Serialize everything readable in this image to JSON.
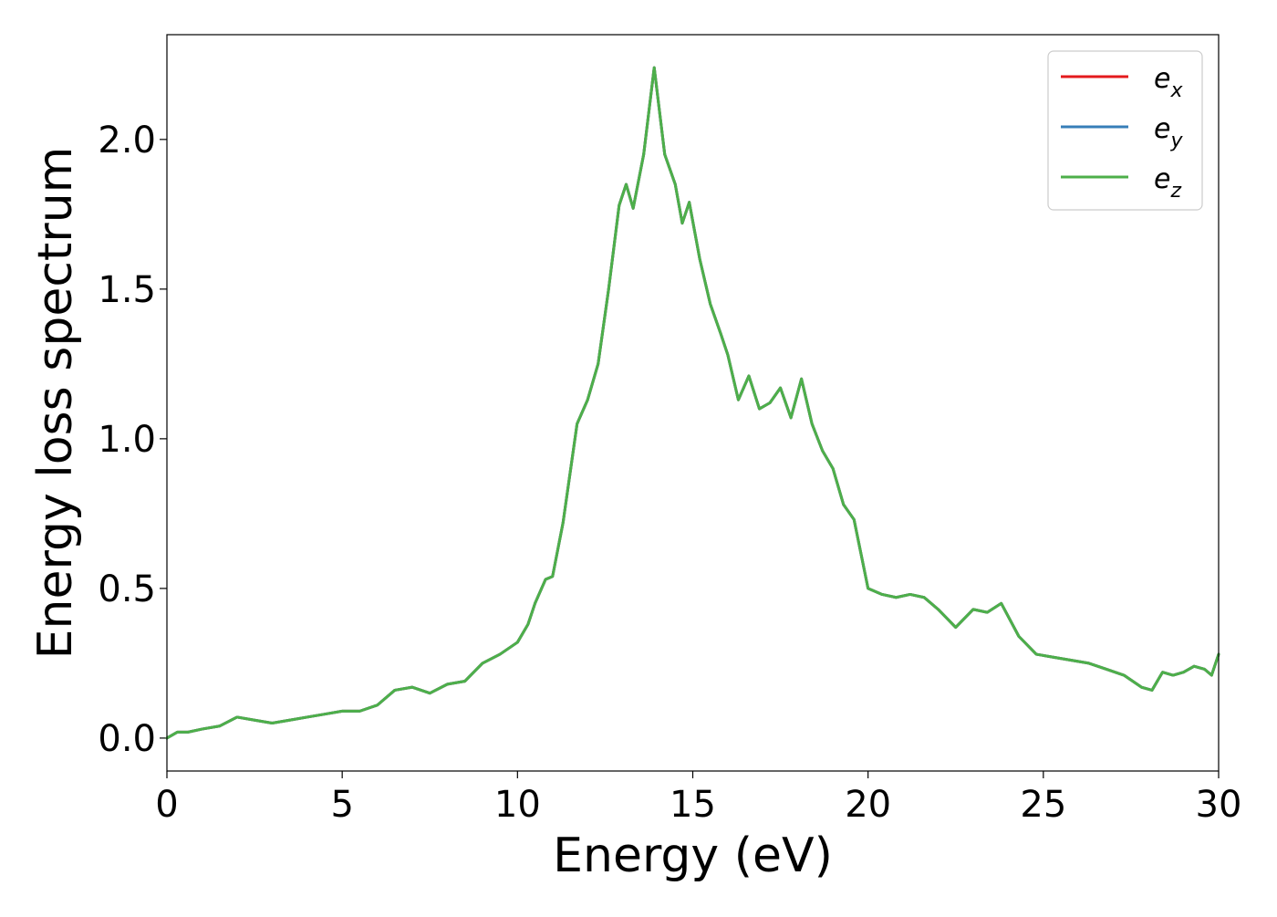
{
  "chart_data": {
    "type": "line",
    "title": "",
    "xlabel": "Energy (eV)",
    "ylabel": "Energy loss spectrum",
    "xlim": [
      0,
      30
    ],
    "ylim": [
      -0.11,
      2.35
    ],
    "xticks": [
      0,
      5,
      10,
      15,
      20,
      25,
      30
    ],
    "xtick_labels": [
      "0",
      "5",
      "10",
      "15",
      "20",
      "25",
      "30"
    ],
    "yticks": [
      0.0,
      0.5,
      1.0,
      1.5,
      2.0
    ],
    "ytick_labels": [
      "0.0",
      "0.5",
      "1.0",
      "1.5",
      "2.0"
    ],
    "grid": false,
    "legend_position": "top-right",
    "x": [
      0.0,
      0.3,
      0.6,
      1.0,
      1.5,
      2.0,
      2.5,
      3.0,
      3.5,
      4.0,
      4.5,
      5.0,
      5.5,
      6.0,
      6.5,
      7.0,
      7.5,
      8.0,
      8.5,
      9.0,
      9.5,
      10.0,
      10.3,
      10.5,
      10.8,
      11.0,
      11.3,
      11.7,
      12.0,
      12.3,
      12.6,
      12.9,
      13.1,
      13.3,
      13.6,
      13.9,
      14.2,
      14.5,
      14.7,
      14.9,
      15.2,
      15.5,
      15.8,
      16.0,
      16.3,
      16.6,
      16.9,
      17.2,
      17.5,
      17.8,
      18.1,
      18.4,
      18.7,
      19.0,
      19.3,
      19.6,
      20.0,
      20.4,
      20.8,
      21.2,
      21.6,
      22.0,
      22.5,
      23.0,
      23.4,
      23.8,
      24.3,
      24.8,
      25.3,
      25.8,
      26.3,
      26.8,
      27.3,
      27.8,
      28.1,
      28.4,
      28.7,
      29.0,
      29.3,
      29.6,
      29.8,
      30.0
    ],
    "series": [
      {
        "name": "e_x",
        "label_base": "e",
        "label_sub": "x",
        "color": "#e41a1c",
        "values": [
          0.0,
          0.02,
          0.02,
          0.03,
          0.04,
          0.07,
          0.06,
          0.05,
          0.06,
          0.07,
          0.08,
          0.09,
          0.09,
          0.11,
          0.16,
          0.17,
          0.15,
          0.18,
          0.19,
          0.25,
          0.28,
          0.32,
          0.38,
          0.45,
          0.53,
          0.54,
          0.72,
          1.05,
          1.13,
          1.25,
          1.5,
          1.78,
          1.85,
          1.77,
          1.95,
          2.24,
          1.95,
          1.85,
          1.72,
          1.79,
          1.6,
          1.45,
          1.35,
          1.28,
          1.13,
          1.21,
          1.1,
          1.12,
          1.17,
          1.07,
          1.2,
          1.05,
          0.96,
          0.9,
          0.78,
          0.73,
          0.5,
          0.48,
          0.47,
          0.48,
          0.47,
          0.43,
          0.37,
          0.43,
          0.42,
          0.45,
          0.34,
          0.28,
          0.27,
          0.26,
          0.25,
          0.23,
          0.21,
          0.17,
          0.16,
          0.22,
          0.21,
          0.22,
          0.24,
          0.23,
          0.21,
          0.28
        ]
      },
      {
        "name": "e_y",
        "label_base": "e",
        "label_sub": "y",
        "color": "#377eb8",
        "values": [
          0.0,
          0.02,
          0.02,
          0.03,
          0.04,
          0.07,
          0.06,
          0.05,
          0.06,
          0.07,
          0.08,
          0.09,
          0.09,
          0.11,
          0.16,
          0.17,
          0.15,
          0.18,
          0.19,
          0.25,
          0.28,
          0.32,
          0.38,
          0.45,
          0.53,
          0.54,
          0.72,
          1.05,
          1.13,
          1.25,
          1.5,
          1.78,
          1.85,
          1.77,
          1.95,
          2.24,
          1.95,
          1.85,
          1.72,
          1.79,
          1.6,
          1.45,
          1.35,
          1.28,
          1.13,
          1.21,
          1.1,
          1.12,
          1.17,
          1.07,
          1.2,
          1.05,
          0.96,
          0.9,
          0.78,
          0.73,
          0.5,
          0.48,
          0.47,
          0.48,
          0.47,
          0.43,
          0.37,
          0.43,
          0.42,
          0.45,
          0.34,
          0.28,
          0.27,
          0.26,
          0.25,
          0.23,
          0.21,
          0.17,
          0.16,
          0.22,
          0.21,
          0.22,
          0.24,
          0.23,
          0.21,
          0.28
        ]
      },
      {
        "name": "e_z",
        "label_base": "e",
        "label_sub": "z",
        "color": "#4daf4a",
        "values": [
          0.0,
          0.02,
          0.02,
          0.03,
          0.04,
          0.07,
          0.06,
          0.05,
          0.06,
          0.07,
          0.08,
          0.09,
          0.09,
          0.11,
          0.16,
          0.17,
          0.15,
          0.18,
          0.19,
          0.25,
          0.28,
          0.32,
          0.38,
          0.45,
          0.53,
          0.54,
          0.72,
          1.05,
          1.13,
          1.25,
          1.5,
          1.78,
          1.85,
          1.77,
          1.95,
          2.24,
          1.95,
          1.85,
          1.72,
          1.79,
          1.6,
          1.45,
          1.35,
          1.28,
          1.13,
          1.21,
          1.1,
          1.12,
          1.17,
          1.07,
          1.2,
          1.05,
          0.96,
          0.9,
          0.78,
          0.73,
          0.5,
          0.48,
          0.47,
          0.48,
          0.47,
          0.43,
          0.37,
          0.43,
          0.42,
          0.45,
          0.34,
          0.28,
          0.27,
          0.26,
          0.25,
          0.23,
          0.21,
          0.17,
          0.16,
          0.22,
          0.21,
          0.22,
          0.24,
          0.23,
          0.21,
          0.28
        ]
      }
    ]
  }
}
